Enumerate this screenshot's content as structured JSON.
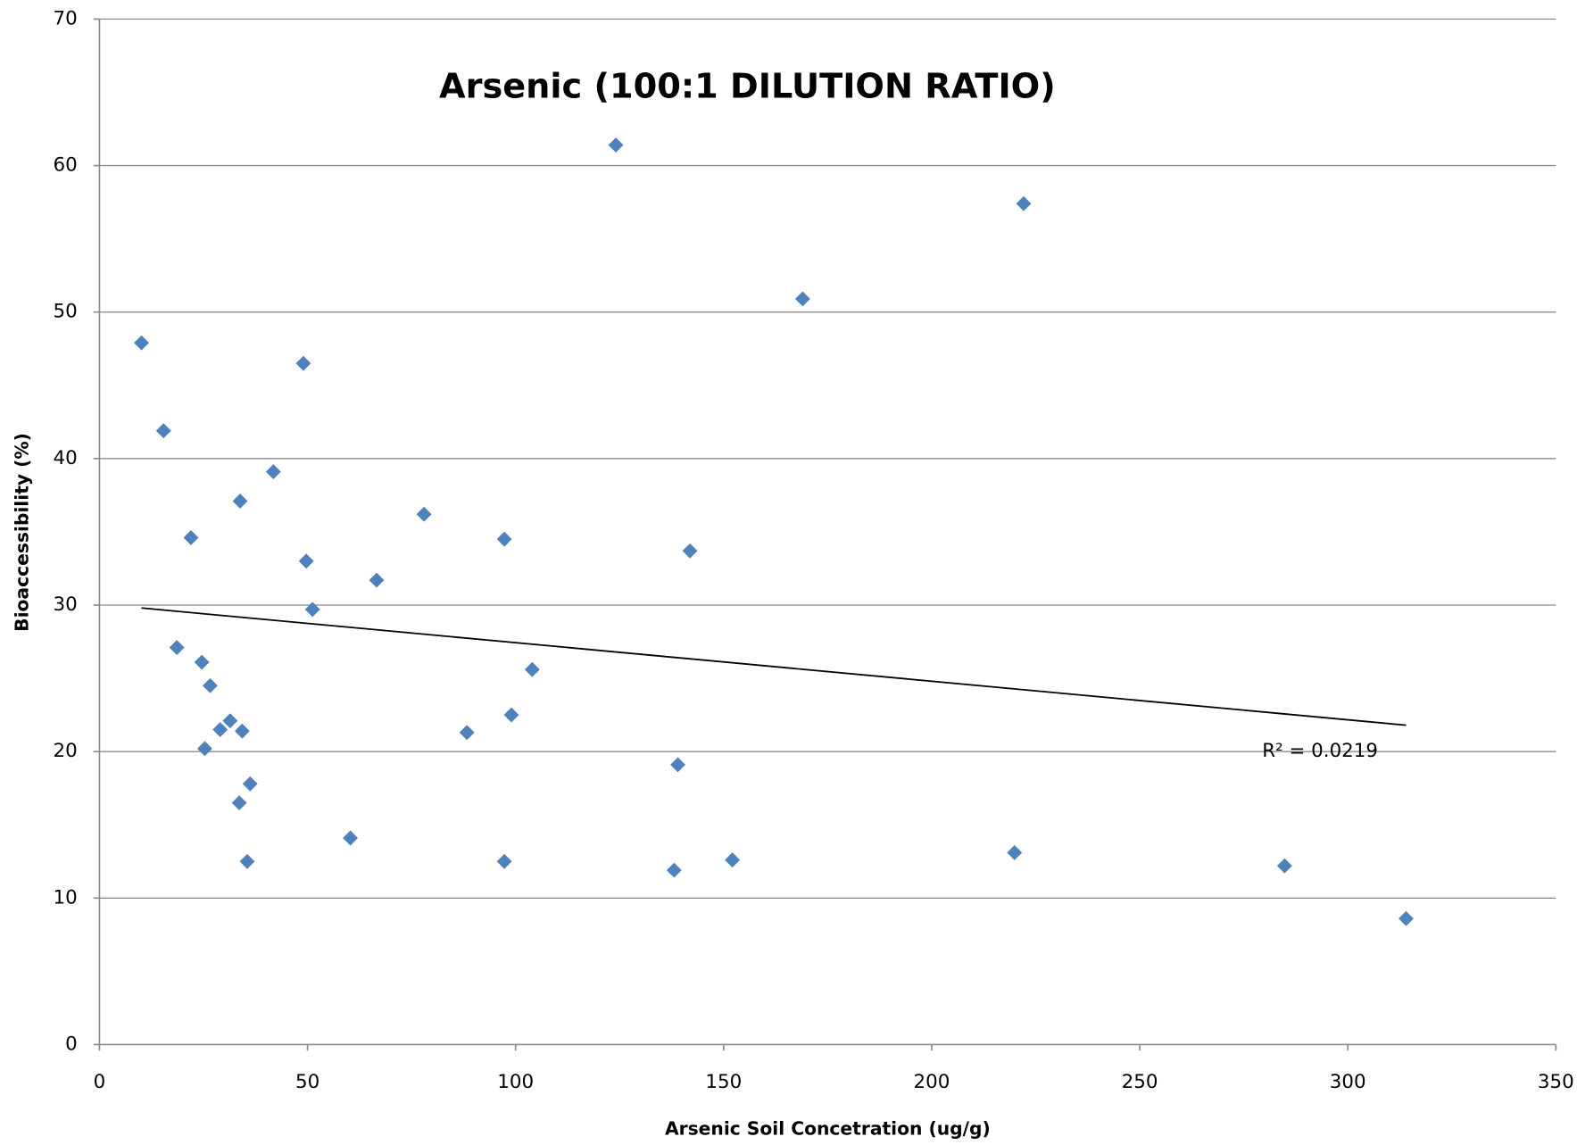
{
  "chart_data": {
    "type": "scatter",
    "title": "Arsenic (100:1 DILUTION RATIO)",
    "x_label": "Arsenic Soil Concetration (ug/g)",
    "y_label": "Bioaccessibility (%)",
    "x": [
      10.1,
      15.4,
      22.0,
      18.6,
      24.6,
      26.6,
      25.3,
      29.0,
      31.4,
      34.3,
      33.8,
      41.8,
      36.2,
      33.6,
      35.5,
      49.0,
      49.7,
      51.2,
      60.3,
      66.6,
      78.0,
      88.3,
      97.3,
      99.0,
      104.0,
      97.3,
      124.1,
      141.9,
      139.0,
      138.1,
      152.1,
      169.0,
      222.1,
      219.9,
      284.8,
      314.0
    ],
    "values": [
      47.9,
      41.9,
      34.6,
      27.1,
      26.1,
      24.5,
      20.2,
      21.5,
      22.1,
      21.4,
      37.1,
      39.1,
      17.8,
      16.5,
      12.5,
      46.5,
      33.0,
      29.7,
      14.1,
      31.7,
      36.2,
      21.3,
      34.5,
      22.5,
      25.6,
      12.5,
      61.4,
      33.7,
      19.1,
      11.9,
      12.6,
      50.9,
      57.4,
      13.1,
      12.2,
      8.6
    ],
    "color": "#4f81bd",
    "trendline": {
      "x": [
        10.1,
        314.0
      ],
      "y": [
        29.8,
        21.8
      ],
      "label": "R² = 0.0219",
      "color": "#000000"
    },
    "xlim": [
      0,
      350
    ],
    "xticks": [
      0,
      50,
      100,
      150,
      200,
      250,
      300,
      350
    ],
    "ylim": [
      0,
      70
    ],
    "yticks": [
      0,
      10,
      20,
      30,
      40,
      50,
      60,
      70
    ],
    "grid": true
  }
}
